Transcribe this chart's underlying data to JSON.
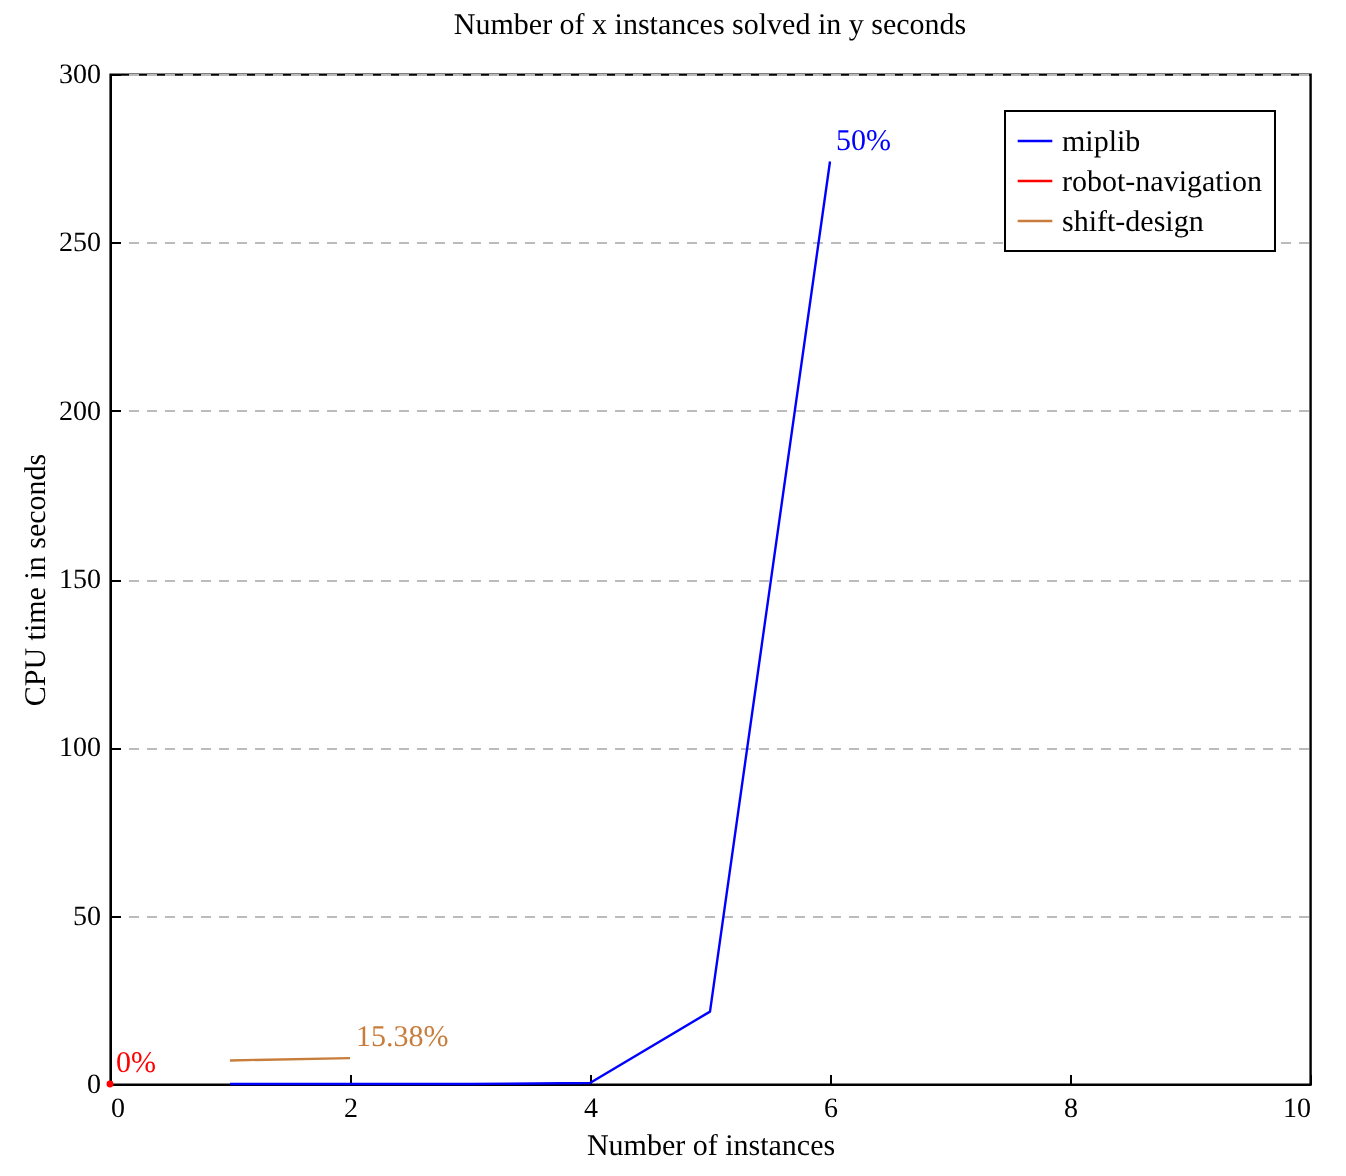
{
  "chart_data": {
    "type": "line",
    "title": "Number of x instances solved in y seconds",
    "xlabel": "Number of instances",
    "ylabel": "CPU time in seconds",
    "series": [
      {
        "name": "miplib",
        "color": "#0000ff",
        "x": [
          1,
          2,
          3,
          4,
          5,
          6
        ],
        "values": [
          0,
          0,
          0,
          0.3,
          21.5,
          274
        ]
      },
      {
        "name": "robot-navigation",
        "color": "#ff0000",
        "x": [
          0
        ],
        "values": [
          0
        ]
      },
      {
        "name": "shift-design",
        "color": "#c87d3c",
        "x": [
          1,
          2
        ],
        "values": [
          7,
          7.7
        ]
      }
    ],
    "annotations": [
      {
        "text": "50%",
        "x": 6,
        "y": 274
      },
      {
        "text": "0%",
        "x": 0,
        "y": 0
      },
      {
        "text": "15.38%",
        "x": 2,
        "y": 7.7
      }
    ],
    "xlim": [
      0,
      10
    ],
    "xticks": [
      0,
      2,
      4,
      6,
      8,
      10
    ],
    "ylim": [
      0,
      300
    ],
    "yticks": [
      0,
      50,
      100,
      150,
      200,
      250,
      300
    ],
    "grid": "y",
    "legend": "top right",
    "marker": "none",
    "line_style": "solid"
  }
}
